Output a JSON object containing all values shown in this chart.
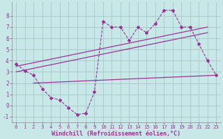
{
  "xlabel": "Windchill (Refroidissement éolien,°C)",
  "background_color": "#c8e8e8",
  "grid_color": "#aacccc",
  "line_color": "#993399",
  "xlim": [
    -0.5,
    23.5
  ],
  "ylim": [
    -1.5,
    9.2
  ],
  "xticks": [
    0,
    1,
    2,
    3,
    4,
    5,
    6,
    7,
    8,
    9,
    10,
    11,
    12,
    13,
    14,
    15,
    16,
    17,
    18,
    19,
    20,
    21,
    22,
    23
  ],
  "yticks": [
    -1,
    0,
    1,
    2,
    3,
    4,
    5,
    6,
    7,
    8
  ],
  "series1_x": [
    0,
    1,
    2,
    3,
    4,
    5,
    6,
    7,
    8,
    9,
    10,
    11,
    12,
    13,
    14,
    15,
    16,
    17,
    18,
    19,
    20,
    21,
    22,
    23
  ],
  "series1_y": [
    3.7,
    3.1,
    2.7,
    1.5,
    0.7,
    0.5,
    -0.2,
    -0.8,
    -0.7,
    1.2,
    7.5,
    7.0,
    7.0,
    5.8,
    7.0,
    6.5,
    7.3,
    8.5,
    8.5,
    7.0,
    7.0,
    5.5,
    4.0,
    2.7
  ],
  "line2_x": [
    0,
    22
  ],
  "line2_y": [
    3.5,
    7.0
  ],
  "line3_x": [
    0,
    22
  ],
  "line3_y": [
    3.0,
    6.5
  ],
  "line4_x": [
    2,
    23
  ],
  "line4_y": [
    2.0,
    2.7
  ]
}
